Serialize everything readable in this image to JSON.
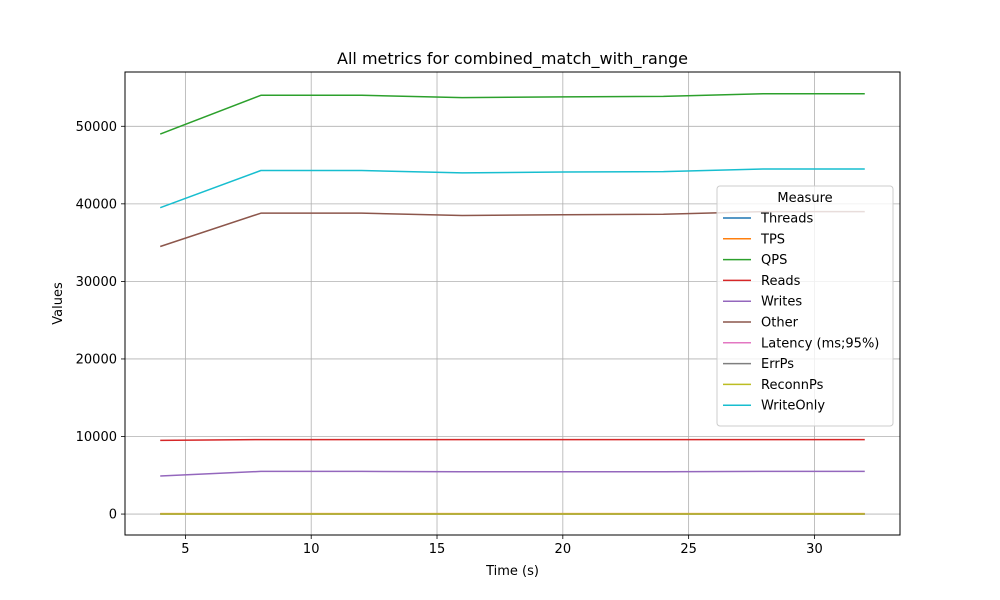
{
  "chart_data": {
    "type": "line",
    "title": "All metrics for combined_match_with_range",
    "xlabel": "Time (s)",
    "ylabel": "Values",
    "xlim": [
      2.6,
      33.4
    ],
    "ylim": [
      -2700,
      57000
    ],
    "xticks": [
      5,
      10,
      15,
      20,
      25,
      30
    ],
    "yticks": [
      0,
      10000,
      20000,
      30000,
      40000,
      50000
    ],
    "grid": true,
    "legend": {
      "title": "Measure",
      "placement": "center-right"
    },
    "x": [
      4,
      8,
      12,
      16,
      20,
      24,
      28,
      32
    ],
    "series": [
      {
        "name": "Threads",
        "color": "#1f77b4",
        "values": [
          8,
          8,
          8,
          8,
          8,
          8,
          8,
          8
        ]
      },
      {
        "name": "TPS",
        "color": "#ff7f0e",
        "values": [
          50,
          55,
          55,
          55,
          55,
          55,
          55,
          55
        ]
      },
      {
        "name": "QPS",
        "color": "#2ca02c",
        "values": [
          49000,
          54000,
          54000,
          53700,
          53800,
          53850,
          54200,
          54200
        ]
      },
      {
        "name": "Reads",
        "color": "#d62728",
        "values": [
          9500,
          9600,
          9600,
          9600,
          9600,
          9600,
          9600,
          9600
        ]
      },
      {
        "name": "Writes",
        "color": "#9467bd",
        "values": [
          4900,
          5500,
          5500,
          5450,
          5450,
          5450,
          5500,
          5500
        ]
      },
      {
        "name": "Other",
        "color": "#8c564b",
        "values": [
          34500,
          38800,
          38800,
          38500,
          38600,
          38650,
          39000,
          39000
        ]
      },
      {
        "name": "Latency (ms;95%)",
        "color": "#e377c2",
        "values": [
          5,
          5,
          5,
          5,
          5,
          5,
          5,
          5
        ]
      },
      {
        "name": "ErrPs",
        "color": "#7f7f7f",
        "values": [
          0,
          0,
          0,
          0,
          0,
          0,
          0,
          0
        ]
      },
      {
        "name": "ReconnPs",
        "color": "#bcbd22",
        "values": [
          0,
          0,
          0,
          0,
          0,
          0,
          0,
          0
        ]
      },
      {
        "name": "WriteOnly",
        "color": "#17becf",
        "values": [
          39500,
          44300,
          44300,
          44000,
          44100,
          44150,
          44500,
          44500
        ]
      }
    ]
  }
}
